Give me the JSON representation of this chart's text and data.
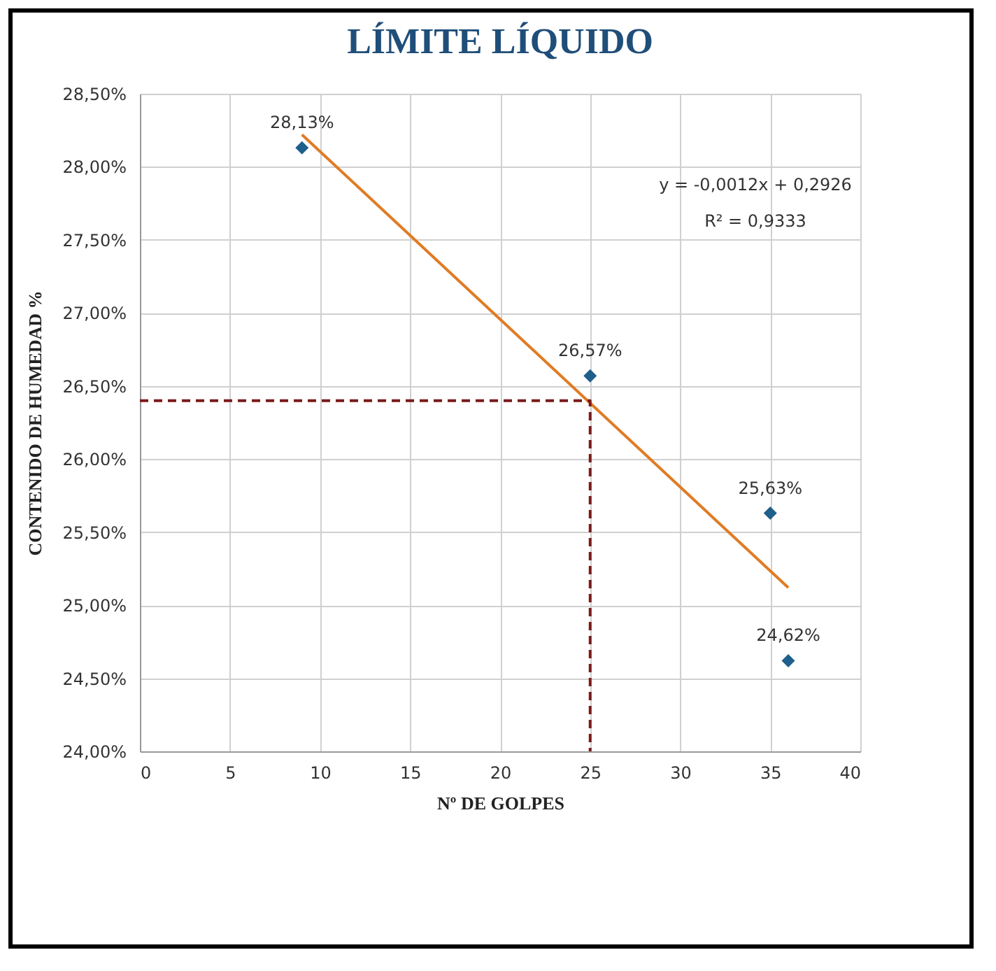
{
  "chart_data": {
    "type": "scatter",
    "title": "LÍMITE LÍQUIDO",
    "xlabel": "Nº DE GOLPES",
    "ylabel": "CONTENIDO DE HUMEDAD %",
    "x": [
      9,
      25,
      35,
      36
    ],
    "series": [
      {
        "color": "#1f5f8b",
        "values": [
          28.13,
          26.57,
          25.63,
          24.62
        ],
        "value_labels": [
          "28,13%",
          "26,57%",
          "25,63%",
          "24,62%"
        ]
      },
      {
        "type": "line",
        "marker": "none",
        "color": "#e07b24",
        "x": [
          9,
          36
        ],
        "values": [
          28.22,
          25.12
        ]
      },
      {
        "type": "line",
        "marker": "none",
        "color": "#7b1a1a",
        "x": [
          0,
          25,
          25
        ],
        "values": [
          26.4,
          26.4,
          24
        ],
        "line_style": "dashed"
      }
    ],
    "annotations": [
      "y = -0,0012x + 0,2926",
      "R² = 0,9333"
    ],
    "xlim": [
      0,
      40
    ],
    "xticks": [
      0,
      5,
      10,
      15,
      20,
      25,
      30,
      35,
      40
    ],
    "ylim": [
      24,
      28.5
    ],
    "yticks": [
      {
        "value": 24,
        "label": "24,00%"
      },
      {
        "value": 24.5,
        "label": "24,50%"
      },
      {
        "value": 25,
        "label": "25,00%"
      },
      {
        "value": 25.5,
        "label": "25,50%"
      },
      {
        "value": 26,
        "label": "26,00%"
      },
      {
        "value": 26.5,
        "label": "26,50%"
      },
      {
        "value": 27,
        "label": "27,00%"
      },
      {
        "value": 27.5,
        "label": "27,50%"
      },
      {
        "value": 28,
        "label": "28,00%"
      },
      {
        "value": 28.5,
        "label": "28,50%"
      }
    ],
    "grid": true,
    "marker": "diamond"
  }
}
